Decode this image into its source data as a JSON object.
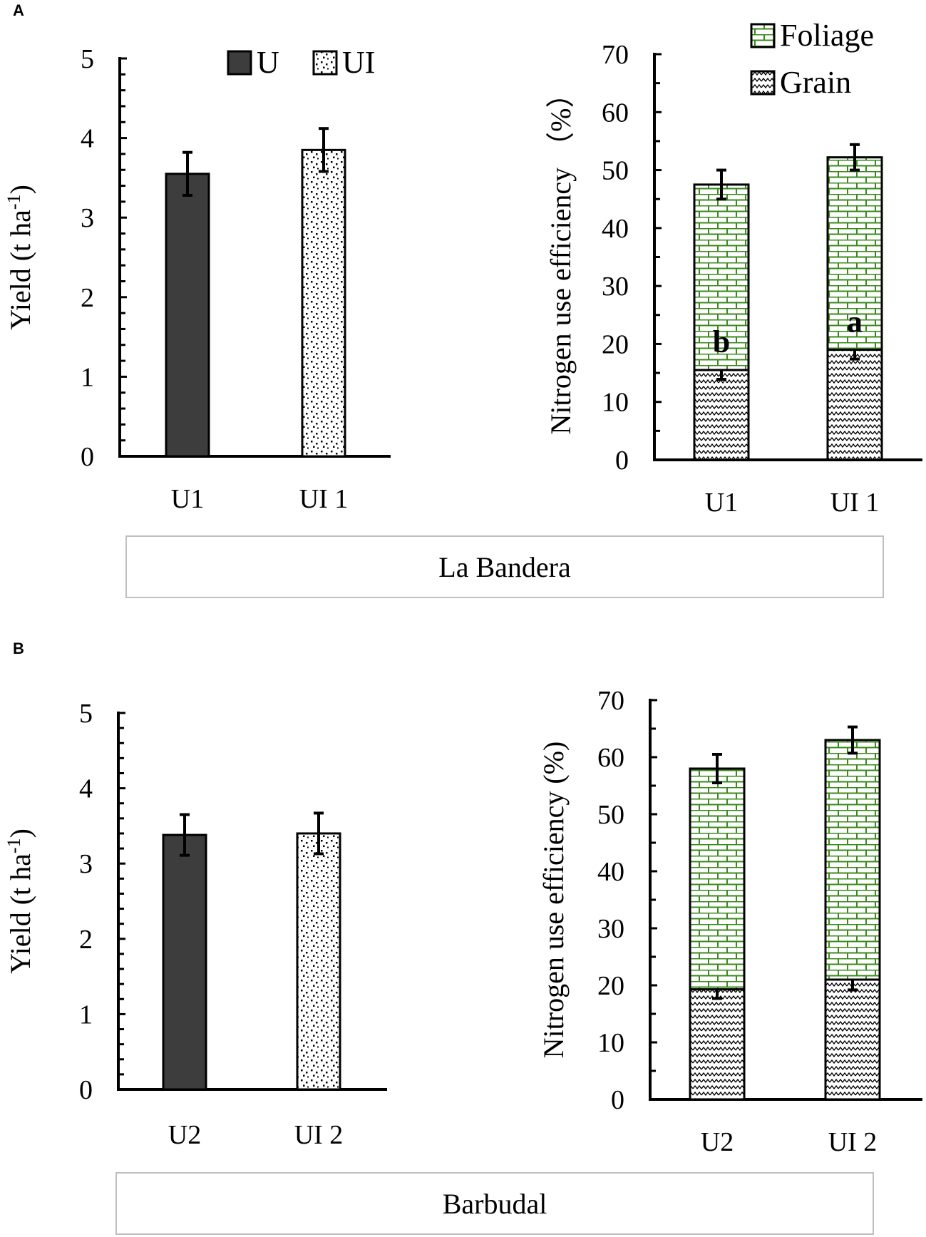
{
  "panels": {
    "a": {
      "letter": "A",
      "site": "La Bandera"
    },
    "b": {
      "letter": "B",
      "site": "Barbudal"
    }
  },
  "colors": {
    "dark_bar": "#3d3d3d",
    "foliage_green": "#3a8a1c",
    "axis": "#000000",
    "site_box_border": "#bfbfbf"
  },
  "chart_data": [
    {
      "id": "a-yield",
      "type": "bar",
      "categories": [
        "U1",
        "UI 1"
      ],
      "values": [
        3.55,
        3.85
      ],
      "errors": [
        0.27,
        0.27
      ],
      "patterns": [
        "solid",
        "dots"
      ],
      "ylabel": "Yield (t ha",
      "ylabel_sup": "-1",
      "ylabel_end": ")",
      "ylim": [
        0,
        5
      ],
      "yticks": [
        0,
        1,
        2,
        3,
        4,
        5
      ],
      "legend": [
        {
          "label": "U",
          "pattern": "solid"
        },
        {
          "label": "UI",
          "pattern": "dots"
        }
      ]
    },
    {
      "id": "a-nue",
      "type": "bar",
      "stacked": true,
      "categories": [
        "U1",
        "UI 1"
      ],
      "series": [
        {
          "name": "Grain",
          "pattern": "wave",
          "values": [
            15.5,
            19.0
          ],
          "errors": [
            1.6,
            1.6
          ]
        },
        {
          "name": "Foliage",
          "pattern": "brick",
          "values": [
            32.0,
            33.2
          ],
          "errors": [
            2.5,
            2.2
          ]
        }
      ],
      "totals": [
        47.5,
        52.2
      ],
      "letters": [
        "b",
        "a"
      ],
      "ylabel": "Nitrogen use efficiency （%）",
      "ylim": [
        0,
        70
      ],
      "yticks": [
        0,
        10,
        20,
        30,
        40,
        50,
        60,
        70
      ],
      "legend": [
        {
          "label": "Foliage",
          "pattern": "brick"
        },
        {
          "label": "Grain",
          "pattern": "wave"
        }
      ]
    },
    {
      "id": "b-yield",
      "type": "bar",
      "categories": [
        "U2",
        "UI 2"
      ],
      "values": [
        3.38,
        3.4
      ],
      "errors": [
        0.27,
        0.27
      ],
      "patterns": [
        "solid",
        "dots"
      ],
      "ylabel": "Yield (t ha",
      "ylabel_sup": "-1",
      "ylabel_end": ")",
      "ylim": [
        0,
        5
      ],
      "yticks": [
        0,
        1,
        2,
        3,
        4,
        5
      ]
    },
    {
      "id": "b-nue",
      "type": "bar",
      "stacked": true,
      "categories": [
        "U2",
        "UI 2"
      ],
      "series": [
        {
          "name": "Grain",
          "pattern": "wave",
          "values": [
            19.3,
            21.0
          ],
          "errors": [
            1.6,
            1.8
          ]
        },
        {
          "name": "Foliage",
          "pattern": "brick",
          "values": [
            38.7,
            42.0
          ],
          "errors": [
            2.5,
            2.3
          ]
        }
      ],
      "totals": [
        58.0,
        63.0
      ],
      "ylabel": "Nitrogen use efficiency (%)",
      "ylim": [
        0,
        70
      ],
      "yticks": [
        0,
        10,
        20,
        30,
        40,
        50,
        60,
        70
      ]
    }
  ]
}
